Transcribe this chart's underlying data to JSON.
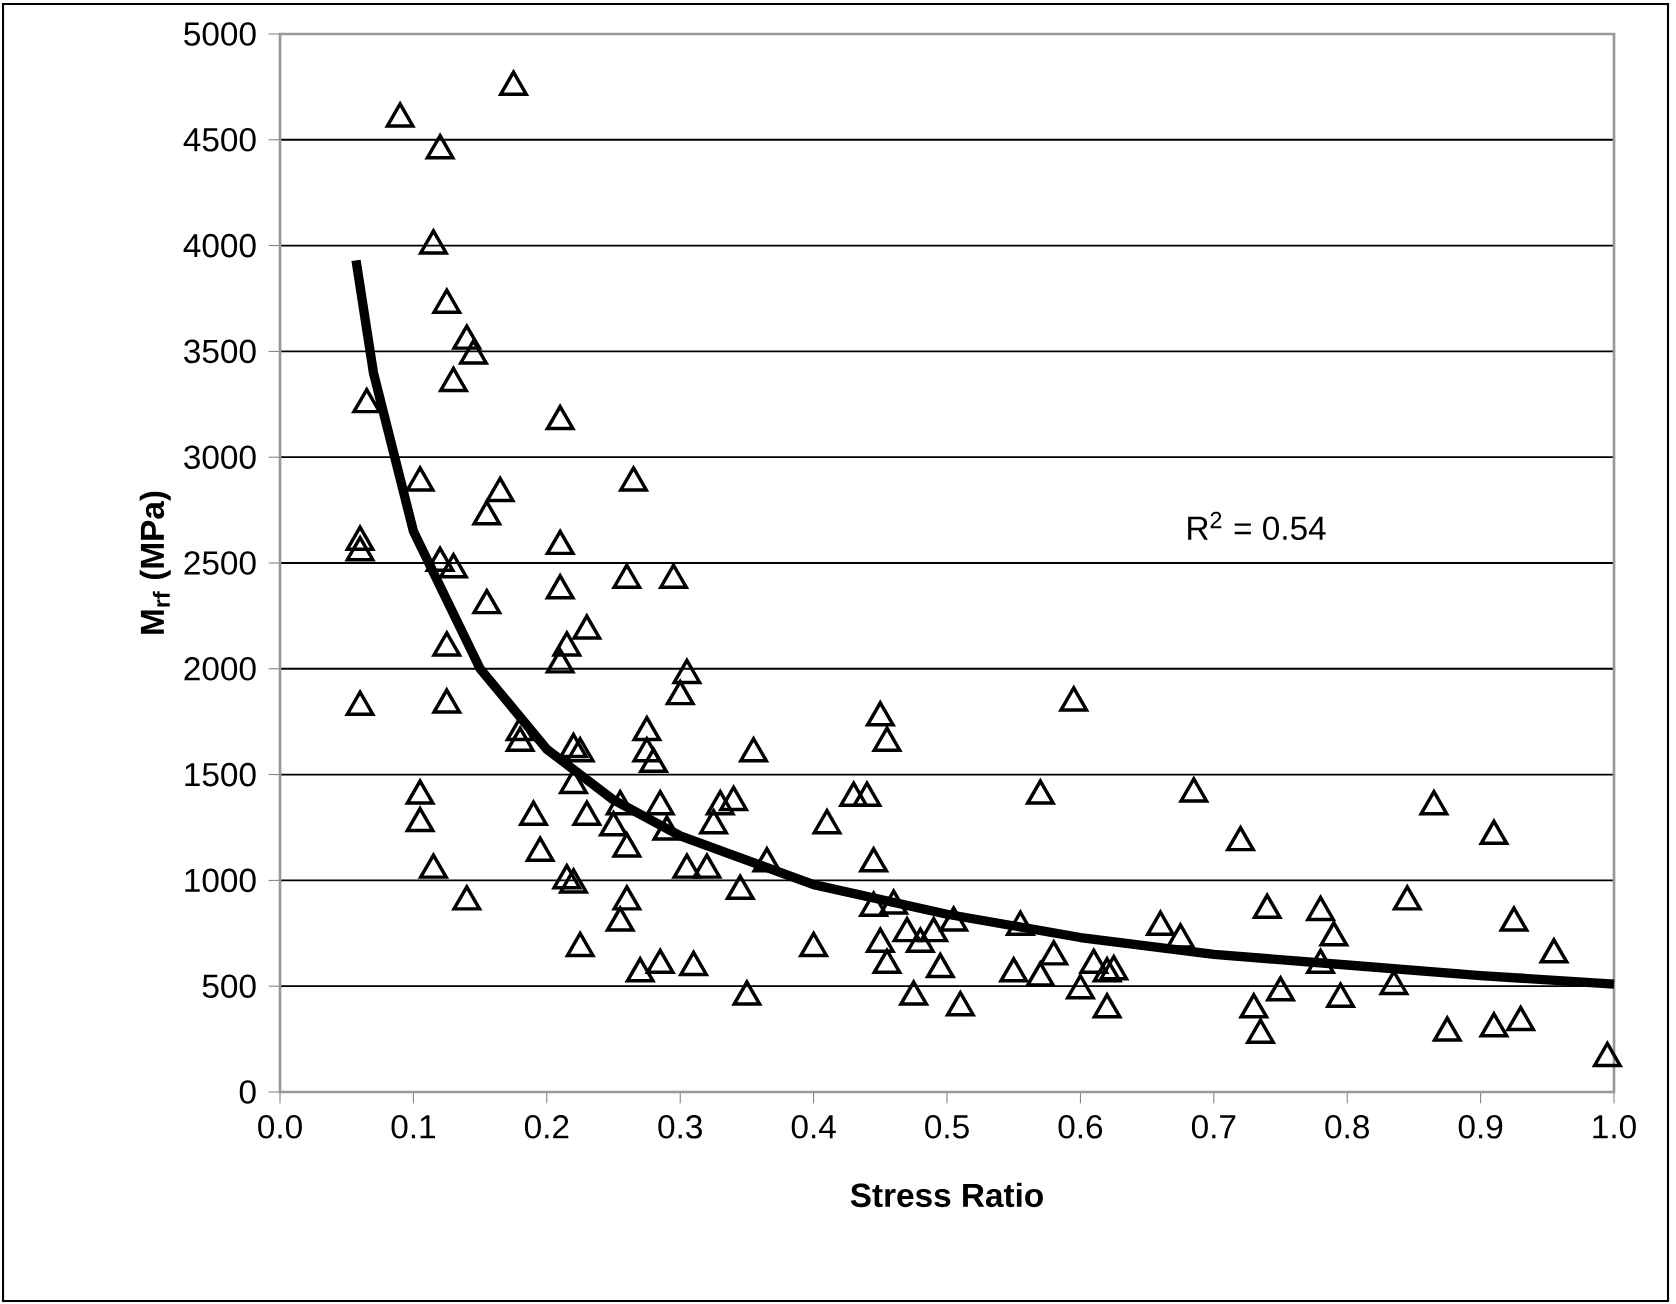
{
  "chart_data": {
    "type": "scatter",
    "xlabel": "Stress Ratio",
    "ylabel": "M$_{rf}$ (MPa)",
    "annotations": [
      "R$^{2}$ = 0.54"
    ],
    "xlim": [
      0,
      1
    ],
    "ylim": [
      0,
      5000
    ],
    "xticks": [
      {
        "value": 0,
        "label": "0.0"
      },
      {
        "value": 0.1,
        "label": "0.1"
      },
      {
        "value": 0.2,
        "label": "0.2"
      },
      {
        "value": 0.3,
        "label": "0.3"
      },
      {
        "value": 0.4,
        "label": "0.4"
      },
      {
        "value": 0.5,
        "label": "0.5"
      },
      {
        "value": 0.6,
        "label": "0.6"
      },
      {
        "value": 0.7,
        "label": "0.7"
      },
      {
        "value": 0.8,
        "label": "0.8"
      },
      {
        "value": 0.9,
        "label": "0.9"
      },
      {
        "value": 1,
        "label": "1.0"
      }
    ],
    "yticks": [
      0,
      500,
      1000,
      1500,
      2000,
      2500,
      3000,
      3500,
      4000,
      4500,
      5000
    ],
    "grid": "y",
    "series": [
      {
        "color": "#000000",
        "marker": "triangle",
        "x": [
          0.06,
          0.06,
          0.06,
          0.065,
          0.09,
          0.105,
          0.105,
          0.105,
          0.115,
          0.115,
          0.12,
          0.12,
          0.125,
          0.125,
          0.125,
          0.13,
          0.13,
          0.14,
          0.14,
          0.145,
          0.155,
          0.155,
          0.165,
          0.175,
          0.18,
          0.18,
          0.19,
          0.195,
          0.21,
          0.21,
          0.21,
          0.21,
          0.215,
          0.215,
          0.22,
          0.22,
          0.22,
          0.225,
          0.225,
          0.23,
          0.23,
          0.25,
          0.255,
          0.255,
          0.26,
          0.26,
          0.26,
          0.265,
          0.27,
          0.275,
          0.275,
          0.28,
          0.285,
          0.285,
          0.29,
          0.295,
          0.3,
          0.305,
          0.305,
          0.31,
          0.32,
          0.325,
          0.33,
          0.34,
          0.345,
          0.35,
          0.355,
          0.365,
          0.4,
          0.41,
          0.43,
          0.44,
          0.445,
          0.445,
          0.45,
          0.455,
          0.45,
          0.455,
          0.46,
          0.47,
          0.475,
          0.48,
          0.49,
          0.495,
          0.505,
          0.51,
          0.55,
          0.555,
          0.57,
          0.57,
          0.58,
          0.595,
          0.6,
          0.61,
          0.62,
          0.62,
          0.625,
          0.66,
          0.675,
          0.685,
          0.72,
          0.73,
          0.735,
          0.74,
          0.75,
          0.78,
          0.78,
          0.79,
          0.795,
          0.835,
          0.845,
          0.865,
          0.875,
          0.91,
          0.91,
          0.925,
          0.93,
          0.955,
          0.995
        ],
        "values": [
          2600,
          2550,
          1820,
          3250,
          4600,
          2880,
          1400,
          1270,
          4000,
          1050,
          4450,
          2500,
          3720,
          2100,
          1830,
          3350,
          2470,
          3550,
          900,
          3480,
          2300,
          2720,
          2830,
          4750,
          1700,
          1650,
          1300,
          1130,
          3170,
          2580,
          2370,
          2020,
          2100,
          1000,
          1620,
          1450,
          980,
          1600,
          680,
          2180,
          1300,
          1250,
          1350,
          800,
          1150,
          900,
          2420,
          2880,
          560,
          1700,
          1600,
          1550,
          1350,
          600,
          1230,
          2420,
          1870,
          1970,
          1050,
          590,
          1050,
          1260,
          1350,
          1370,
          950,
          450,
          1600,
          1080,
          680,
          1260,
          1390,
          1390,
          1080,
          870,
          1770,
          1650,
          700,
          600,
          880,
          750,
          450,
          700,
          750,
          580,
          800,
          400,
          560,
          780,
          1400,
          540,
          640,
          1840,
          480,
          600,
          560,
          390,
          570,
          780,
          720,
          1410,
          1180,
          390,
          270,
          860,
          470,
          850,
          600,
          730,
          440,
          500,
          900,
          1350,
          280,
          300,
          1210,
          800,
          330,
          650,
          160
        ]
      },
      {
        "type": "line",
        "color": "#000000",
        "marker": "none",
        "x": [
          0.057,
          0.07,
          0.1,
          0.15,
          0.2,
          0.25,
          0.3,
          0.4,
          0.5,
          0.6,
          0.7,
          0.8,
          0.9,
          1.0
        ],
        "values": [
          3930,
          3400,
          2650,
          2000,
          1620,
          1380,
          1210,
          980,
          840,
          730,
          650,
          600,
          550,
          510
        ]
      }
    ]
  }
}
